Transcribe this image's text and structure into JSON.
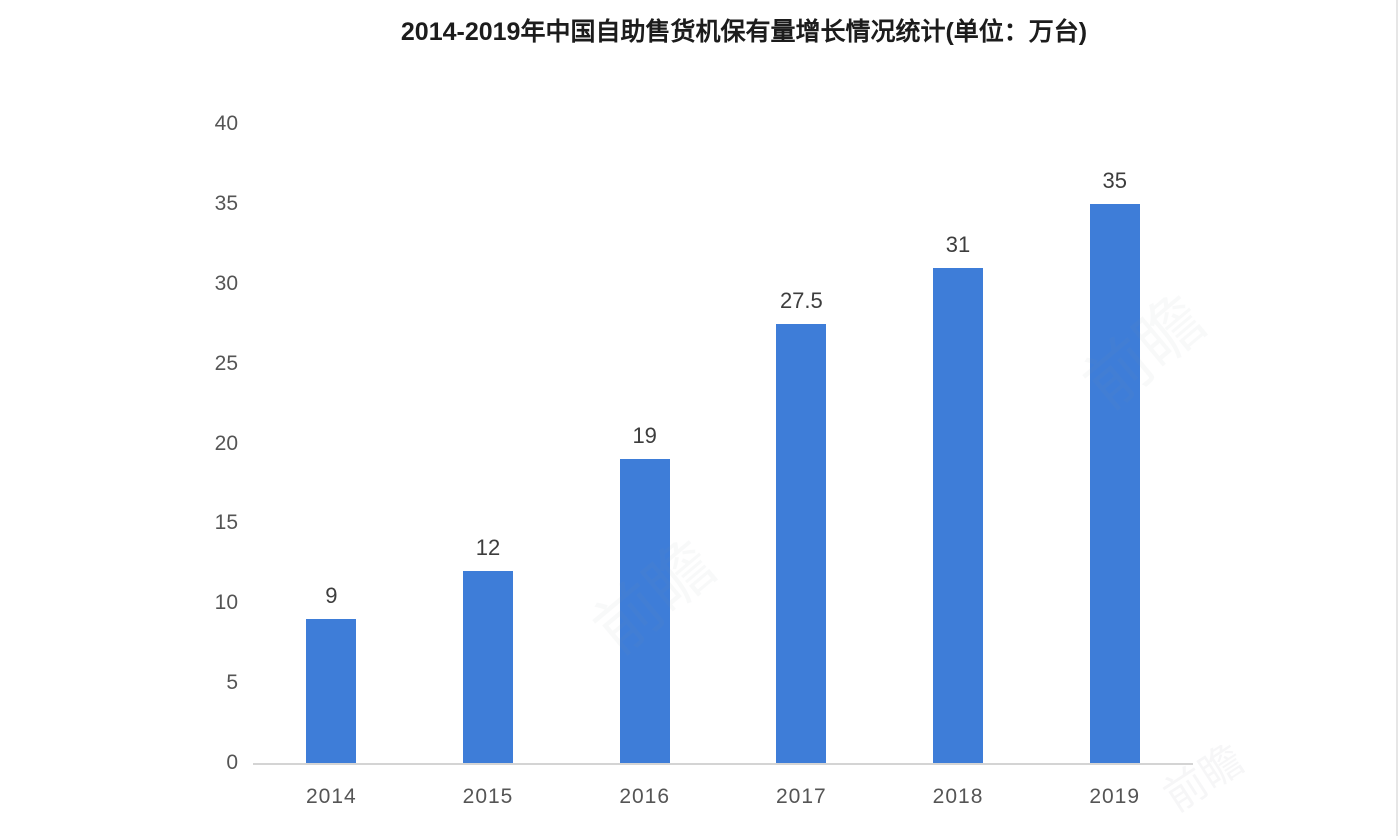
{
  "page": {
    "background": "#ffffff",
    "watermark_text": "前瞻"
  },
  "chart_data": {
    "type": "bar",
    "title": "2014-2019年中国自助售货机保有量增长情况统计(单位：万台)",
    "categories": [
      "2014",
      "2015",
      "2016",
      "2017",
      "2018",
      "2019"
    ],
    "values": [
      9,
      12,
      19,
      27.5,
      31,
      35
    ],
    "value_labels": [
      "9",
      "12",
      "19",
      "27.5",
      "31",
      "35"
    ],
    "xlabel": "",
    "ylabel": "",
    "ylim": [
      0,
      40
    ],
    "yticks": [
      0,
      5,
      10,
      15,
      20,
      25,
      30,
      35,
      40
    ],
    "grid": false,
    "legend": null,
    "bar_color": "#3e7dd8",
    "axis_line_color": "#d4d4d4",
    "title_color": "#1c1c1c",
    "tick_label_color": "#555555",
    "value_label_color": "#3d3d3d"
  }
}
